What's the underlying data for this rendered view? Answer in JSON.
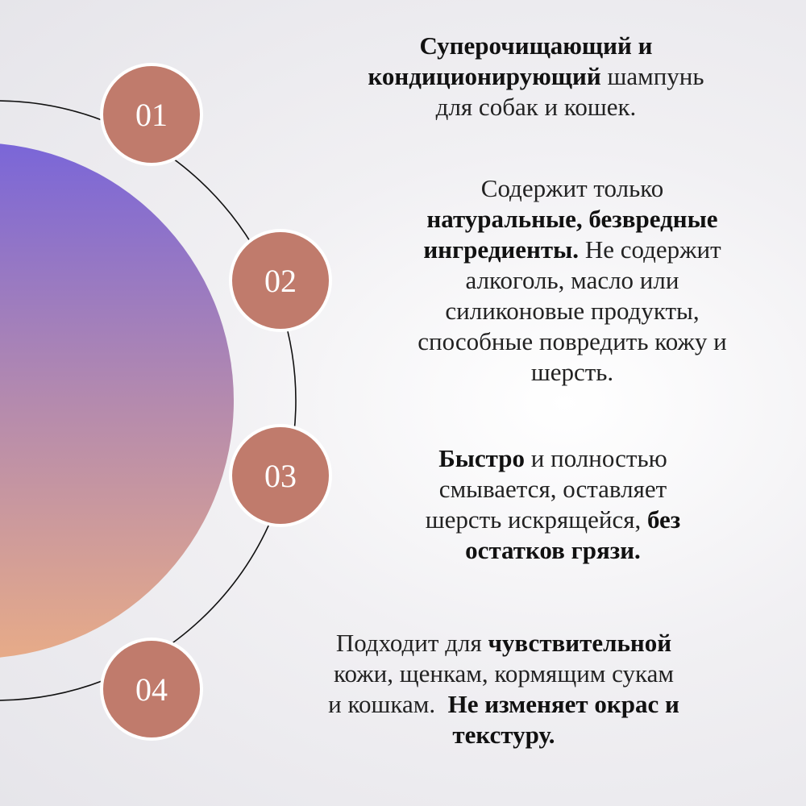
{
  "colors": {
    "badge": "#c07b6c",
    "gradient_top": "#7a66d8",
    "gradient_bottom": "#e7ab88",
    "line": "#111111"
  },
  "items": [
    {
      "number": "01",
      "lines": [
        [
          {
            "t": "Суперочищающий и",
            "b": true
          }
        ],
        [
          {
            "t": "кондиционирующий",
            "b": true
          },
          {
            "t": " шампунь",
            "b": false
          }
        ],
        [
          {
            "t": "для собак и кошек.",
            "b": false
          }
        ]
      ]
    },
    {
      "number": "02",
      "lines": [
        [
          {
            "t": "Содержит только",
            "b": false
          }
        ],
        [
          {
            "t": "натуральные, безвредные",
            "b": true
          }
        ],
        [
          {
            "t": "ингредиенты.",
            "b": true
          },
          {
            "t": " Не содержит",
            "b": false
          }
        ],
        [
          {
            "t": "алкоголь, масло или",
            "b": false
          }
        ],
        [
          {
            "t": "силиконовые продукты,",
            "b": false
          }
        ],
        [
          {
            "t": "способные повредить кожу и",
            "b": false
          }
        ],
        [
          {
            "t": "шерсть.",
            "b": false
          }
        ]
      ]
    },
    {
      "number": "03",
      "lines": [
        [
          {
            "t": "Быстро",
            "b": true
          },
          {
            "t": " и полностью",
            "b": false
          }
        ],
        [
          {
            "t": "смывается, оставляет",
            "b": false
          }
        ],
        [
          {
            "t": "шерсть искрящейся, ",
            "b": false
          },
          {
            "t": "без",
            "b": true
          }
        ],
        [
          {
            "t": "остатков грязи.",
            "b": true
          }
        ]
      ]
    },
    {
      "number": "04",
      "lines": [
        [
          {
            "t": "Подходит для ",
            "b": false
          },
          {
            "t": "чувствительной",
            "b": true
          }
        ],
        [
          {
            "t": "кожи, щенкам, кормящим сукам",
            "b": false
          }
        ],
        [
          {
            "t": "и кошкам.  ",
            "b": false
          },
          {
            "t": "Не изменяет окрас и",
            "b": true
          }
        ],
        [
          {
            "t": "текстуру.",
            "b": true
          }
        ]
      ]
    }
  ]
}
